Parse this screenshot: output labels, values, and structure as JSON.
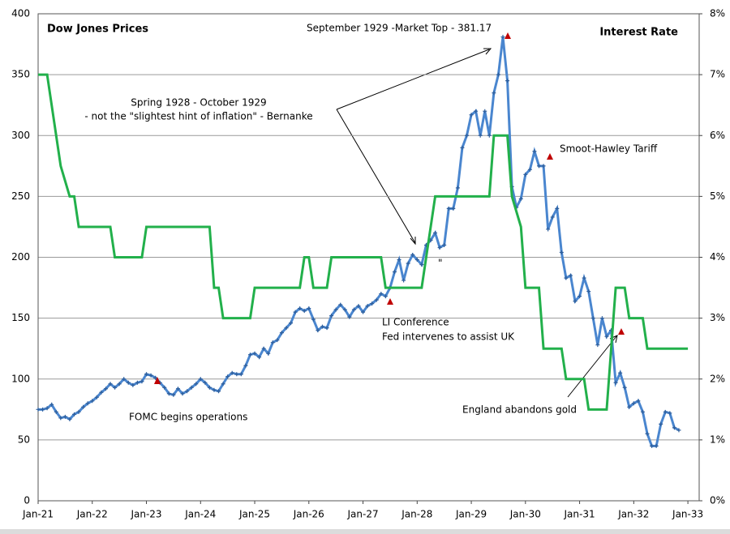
{
  "chart_data": {
    "type": "line",
    "annotations": [
      "September 1929  -Market Top - 381.17",
      "Spring 1928  - October 1929",
      "- not the \"slightest hint of inflation\" - Bernanke",
      "Smoot-Hawley Tariff",
      "LI Conference",
      "Fed intervenes to assist UK",
      "England abandons gold",
      "FOMC begins operations",
      "\""
    ],
    "xlim": [
      0,
      146.5
    ],
    "xticks": [
      {
        "value": 0,
        "label": "Jan-21"
      },
      {
        "value": 12,
        "label": "Jan-22"
      },
      {
        "value": 24,
        "label": "Jan-23"
      },
      {
        "value": 36,
        "label": "Jan-24"
      },
      {
        "value": 48,
        "label": "Jan-25"
      },
      {
        "value": 60,
        "label": "Jan-26"
      },
      {
        "value": 72,
        "label": "Jan-27"
      },
      {
        "value": 84,
        "label": "Jan-28"
      },
      {
        "value": 96,
        "label": "Jan-29"
      },
      {
        "value": 108,
        "label": "Jan-30"
      },
      {
        "value": 120,
        "label": "Jan-31"
      },
      {
        "value": 132,
        "label": "Jan-32"
      },
      {
        "value": 144,
        "label": "Jan-33"
      }
    ],
    "ylim": [
      0,
      400
    ],
    "yticks": [
      0,
      50,
      100,
      150,
      200,
      250,
      300,
      350,
      400
    ],
    "y2lim": [
      0,
      8
    ],
    "y2ticks": [
      {
        "value": 0,
        "label": "0%"
      },
      {
        "value": 1,
        "label": "1%"
      },
      {
        "value": 2,
        "label": "2%"
      },
      {
        "value": 3,
        "label": "3%"
      },
      {
        "value": 4,
        "label": "4%"
      },
      {
        "value": 5,
        "label": "5%"
      },
      {
        "value": 6,
        "label": "6%"
      },
      {
        "value": 7,
        "label": "7%"
      },
      {
        "value": 8,
        "label": "8%"
      }
    ],
    "grid": true,
    "series": [
      {
        "name": "Dow Jones Prices",
        "color": "#4a86cf",
        "x": [
          0,
          1,
          2,
          3,
          4,
          5,
          6,
          7,
          8,
          9,
          10,
          11,
          12,
          13,
          14,
          15,
          16,
          17,
          18,
          19,
          20,
          21,
          22,
          23,
          24,
          25,
          26,
          27,
          28,
          29,
          30,
          31,
          32,
          33,
          34,
          35,
          36,
          37,
          38,
          39,
          40,
          41,
          42,
          43,
          44,
          45,
          46,
          47,
          48,
          49,
          50,
          51,
          52,
          53,
          54,
          55,
          56,
          57,
          58,
          59,
          60,
          61,
          62,
          63,
          64,
          65,
          66,
          67,
          68,
          69,
          70,
          71,
          72,
          73,
          74,
          75,
          76,
          77,
          78,
          79,
          80,
          81,
          82,
          83,
          84,
          85,
          86,
          87,
          88,
          89,
          90,
          91,
          92,
          93,
          94,
          95,
          96,
          97,
          98,
          99,
          100,
          101,
          102,
          103,
          104,
          105,
          106,
          107,
          108,
          109,
          110,
          111,
          112,
          113,
          114,
          115,
          116,
          117,
          118,
          119,
          120,
          121,
          122,
          123,
          124,
          125,
          126,
          127,
          128,
          129,
          130,
          131,
          132,
          133,
          134,
          135,
          136,
          137,
          138,
          139,
          140,
          141,
          142
        ],
        "values": [
          75,
          75,
          76,
          79,
          73,
          68,
          69,
          67,
          71,
          73,
          77,
          80,
          82,
          85,
          89,
          92,
          96,
          93,
          96,
          100,
          97,
          95,
          97,
          98,
          104,
          103,
          101,
          97,
          93,
          88,
          87,
          92,
          88,
          90,
          93,
          96,
          100,
          97,
          93,
          91,
          90,
          96,
          102,
          105,
          104,
          104,
          111,
          120,
          121,
          118,
          125,
          121,
          130,
          132,
          138,
          142,
          146,
          155,
          158,
          156,
          158,
          149,
          140,
          143,
          142,
          152,
          157,
          161,
          157,
          151,
          157,
          160,
          155,
          160,
          162,
          165,
          170,
          168,
          175,
          188,
          198,
          181,
          195,
          202,
          198,
          194,
          210,
          214,
          220,
          208,
          210,
          240,
          240,
          257,
          290,
          300,
          317,
          320,
          300,
          320,
          300,
          335,
          350,
          381,
          345,
          258,
          241,
          248,
          268,
          272,
          287,
          275,
          275,
          223,
          233,
          240,
          204,
          183,
          185,
          164,
          168,
          183,
          172,
          150,
          128,
          150,
          135,
          140,
          97,
          105,
          93,
          77,
          80,
          82,
          73,
          55,
          45,
          45,
          63,
          73,
          72,
          60,
          58
        ]
      },
      {
        "name": "Interest Rate",
        "color": "#22b04b",
        "axis": "y2",
        "x": [
          0,
          2,
          4,
          5,
          7,
          8,
          9,
          16,
          17,
          23,
          24,
          38,
          39,
          40,
          41,
          47,
          48,
          58,
          59,
          60,
          61,
          64,
          65,
          76,
          77,
          85,
          86,
          87,
          88,
          100,
          101,
          104,
          105,
          107,
          108,
          111,
          112,
          116,
          117,
          121,
          122,
          126,
          127,
          128,
          130,
          131,
          134,
          135,
          144
        ],
        "values": [
          7,
          7,
          6,
          5.5,
          5,
          5,
          4.5,
          4.5,
          4,
          4,
          4.5,
          4.5,
          3.5,
          3.5,
          3,
          3,
          3.5,
          3.5,
          4,
          4,
          3.5,
          3.5,
          4,
          4,
          3.5,
          3.5,
          4,
          4.5,
          5,
          5,
          6,
          6,
          5,
          4.5,
          3.5,
          3.5,
          2.5,
          2.5,
          2,
          2,
          1.5,
          1.5,
          2.5,
          3.5,
          3.5,
          3,
          3,
          2.5,
          2.5
        ]
      }
    ]
  }
}
